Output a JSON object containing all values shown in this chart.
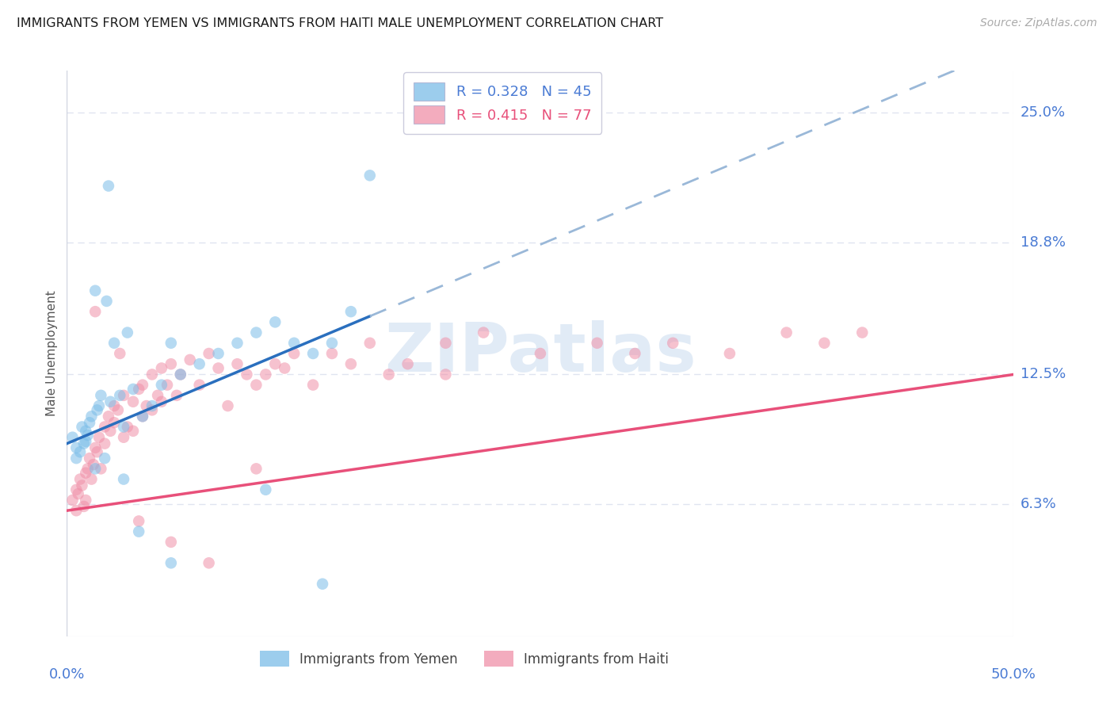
{
  "title": "IMMIGRANTS FROM YEMEN VS IMMIGRANTS FROM HAITI MALE UNEMPLOYMENT CORRELATION CHART",
  "source": "Source: ZipAtlas.com",
  "ylabel": "Male Unemployment",
  "ytick_labels": [
    "6.3%",
    "12.5%",
    "18.8%",
    "25.0%"
  ],
  "ytick_values": [
    6.3,
    12.5,
    18.8,
    25.0
  ],
  "xmin": 0.0,
  "xmax": 50.0,
  "ymin": 0.0,
  "ymax": 27.0,
  "yemen_color": "#7bbde8",
  "haiti_color": "#f090a8",
  "yemen_scatter_x": [
    0.3,
    0.5,
    0.5,
    0.7,
    0.8,
    0.9,
    1.0,
    1.0,
    1.1,
    1.2,
    1.3,
    1.5,
    1.6,
    1.7,
    1.8,
    2.0,
    2.1,
    2.3,
    2.5,
    2.8,
    3.0,
    3.2,
    3.5,
    4.0,
    4.5,
    5.0,
    5.5,
    6.0,
    7.0,
    8.0,
    9.0,
    10.0,
    11.0,
    12.0,
    13.0,
    14.0,
    15.0,
    16.0,
    1.5,
    2.2,
    3.0,
    3.8,
    5.5,
    10.5,
    13.5
  ],
  "yemen_scatter_y": [
    9.5,
    9.0,
    8.5,
    8.8,
    10.0,
    9.2,
    9.8,
    9.3,
    9.6,
    10.2,
    10.5,
    16.5,
    10.8,
    11.0,
    11.5,
    8.5,
    16.0,
    11.2,
    14.0,
    11.5,
    10.0,
    14.5,
    11.8,
    10.5,
    11.0,
    12.0,
    14.0,
    12.5,
    13.0,
    13.5,
    14.0,
    14.5,
    15.0,
    14.0,
    13.5,
    14.0,
    15.5,
    22.0,
    8.0,
    21.5,
    7.5,
    5.0,
    3.5,
    7.0,
    2.5
  ],
  "haiti_scatter_x": [
    0.3,
    0.5,
    0.5,
    0.6,
    0.7,
    0.8,
    0.9,
    1.0,
    1.0,
    1.1,
    1.2,
    1.3,
    1.4,
    1.5,
    1.6,
    1.7,
    1.8,
    2.0,
    2.0,
    2.2,
    2.3,
    2.5,
    2.5,
    2.7,
    3.0,
    3.0,
    3.2,
    3.5,
    3.5,
    3.8,
    4.0,
    4.0,
    4.2,
    4.5,
    4.5,
    4.8,
    5.0,
    5.0,
    5.3,
    5.5,
    5.8,
    6.0,
    6.5,
    7.0,
    7.5,
    8.0,
    8.5,
    9.0,
    9.5,
    10.0,
    10.5,
    11.0,
    11.5,
    12.0,
    13.0,
    14.0,
    15.0,
    16.0,
    17.0,
    18.0,
    20.0,
    22.0,
    25.0,
    28.0,
    30.0,
    32.0,
    35.0,
    38.0,
    40.0,
    42.0,
    1.5,
    2.8,
    3.8,
    5.5,
    7.5,
    10.0,
    20.0
  ],
  "haiti_scatter_y": [
    6.5,
    7.0,
    6.0,
    6.8,
    7.5,
    7.2,
    6.2,
    7.8,
    6.5,
    8.0,
    8.5,
    7.5,
    8.2,
    9.0,
    8.8,
    9.5,
    8.0,
    10.0,
    9.2,
    10.5,
    9.8,
    11.0,
    10.2,
    10.8,
    9.5,
    11.5,
    10.0,
    11.2,
    9.8,
    11.8,
    10.5,
    12.0,
    11.0,
    12.5,
    10.8,
    11.5,
    12.8,
    11.2,
    12.0,
    13.0,
    11.5,
    12.5,
    13.2,
    12.0,
    13.5,
    12.8,
    11.0,
    13.0,
    12.5,
    12.0,
    12.5,
    13.0,
    12.8,
    13.5,
    12.0,
    13.5,
    13.0,
    14.0,
    12.5,
    13.0,
    12.5,
    14.5,
    13.5,
    14.0,
    13.5,
    14.0,
    13.5,
    14.5,
    14.0,
    14.5,
    15.5,
    13.5,
    5.5,
    4.5,
    3.5,
    8.0,
    14.0
  ],
  "yemen_line_color": "#2a6fbe",
  "haiti_line_color": "#e8507a",
  "dashed_line_color": "#9ab8d8",
  "watermark_text": "ZIPatlas",
  "watermark_color": "#c5d8ee",
  "grid_color": "#e0e4f0",
  "right_label_color": "#4a7bd4",
  "legend_top": [
    {
      "label": "R = 0.328   N = 45",
      "color": "#4a7bd4",
      "patch_color": "#7bbde8"
    },
    {
      "label": "R = 0.415   N = 77",
      "color": "#e8507a",
      "patch_color": "#f090a8"
    }
  ],
  "legend_bottom": [
    {
      "label": "Immigrants from Yemen",
      "patch_color": "#7bbde8"
    },
    {
      "label": "Immigrants from Haiti",
      "patch_color": "#f090a8"
    }
  ]
}
